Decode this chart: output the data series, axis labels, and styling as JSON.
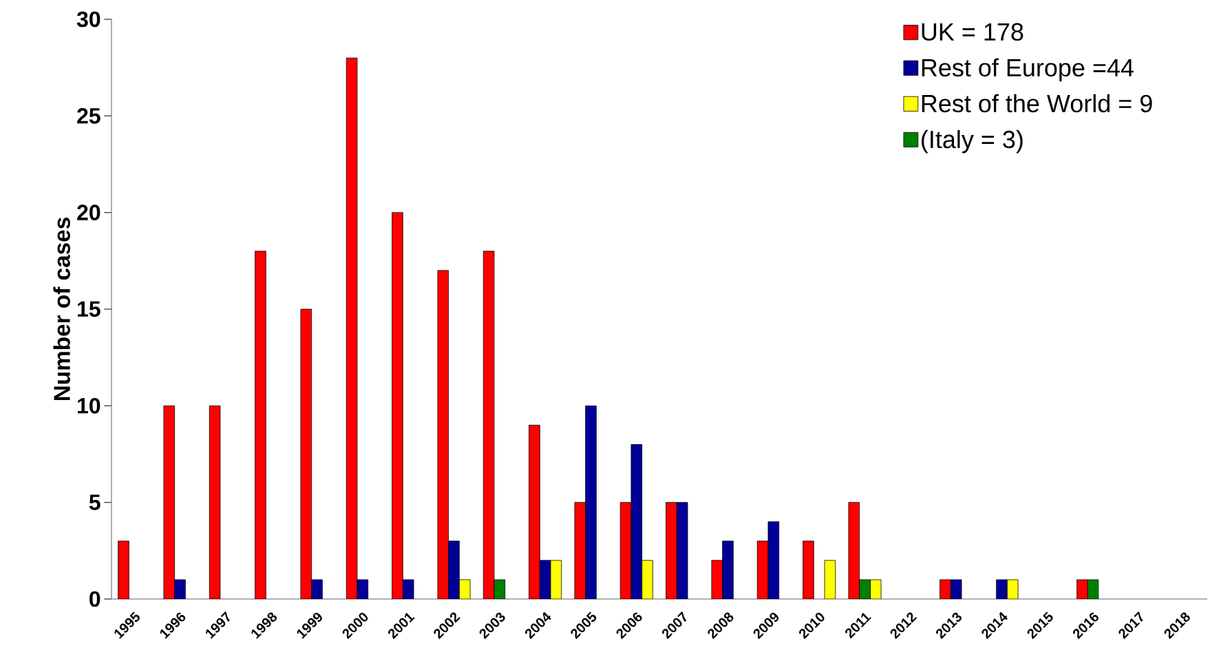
{
  "chart_data": {
    "type": "bar",
    "ylabel": "Number of cases",
    "categories": [
      "1995",
      "1996",
      "1997",
      "1998",
      "1999",
      "2000",
      "2001",
      "2002",
      "2003",
      "2004",
      "2005",
      "2006",
      "2007",
      "2008",
      "2009",
      "2010",
      "2011",
      "2012",
      "2013",
      "2014",
      "2015",
      "2016",
      "2017",
      "2018"
    ],
    "series": [
      {
        "name": "UK = 178",
        "color": "#ff0000",
        "values": [
          3,
          10,
          10,
          18,
          15,
          28,
          20,
          17,
          18,
          9,
          5,
          5,
          5,
          2,
          3,
          3,
          5,
          null,
          1,
          null,
          null,
          1,
          null,
          null
        ]
      },
      {
        "name": "Rest of Europe =44",
        "color": "#000099",
        "values": [
          null,
          1,
          null,
          null,
          1,
          1,
          1,
          3,
          null,
          2,
          10,
          8,
          5,
          3,
          4,
          null,
          null,
          null,
          1,
          1,
          null,
          null,
          null,
          null
        ]
      },
      {
        "name": "Rest of the World = 9",
        "color": "#ffff00",
        "values": [
          null,
          null,
          null,
          null,
          null,
          null,
          null,
          1,
          null,
          2,
          null,
          2,
          null,
          null,
          null,
          2,
          1,
          null,
          null,
          1,
          null,
          null,
          null,
          null
        ]
      },
      {
        "name": "(Italy = 3)",
        "color": "#008000",
        "values": [
          null,
          null,
          null,
          null,
          null,
          null,
          null,
          null,
          1,
          null,
          null,
          null,
          null,
          null,
          null,
          null,
          1,
          null,
          null,
          null,
          null,
          1,
          null,
          null
        ]
      }
    ],
    "ylim": [
      0,
      30
    ],
    "yticks": [
      0,
      5,
      10,
      15,
      20,
      25,
      30
    ],
    "grid": false,
    "legend": "top right"
  }
}
